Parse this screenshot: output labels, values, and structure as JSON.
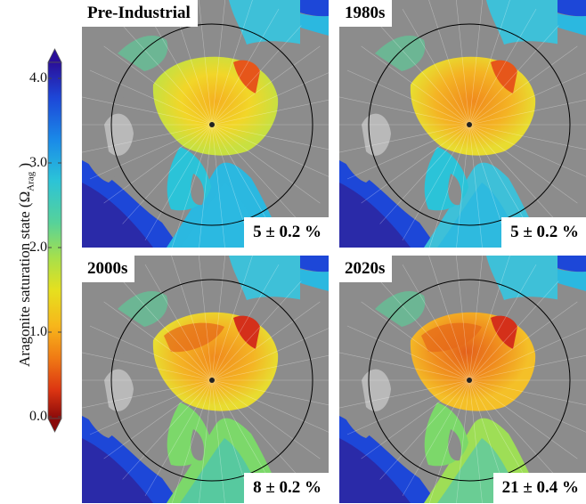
{
  "colorbar": {
    "title_main": "Aragonite saturation state (Ω",
    "title_sub": "Arag",
    "title_end": " )",
    "ticks": [
      "4.0",
      "3.0",
      "2.0",
      "1.0",
      "0.0"
    ],
    "colors": [
      "#2a0f99",
      "#1d47d8",
      "#1a8be8",
      "#2bc3d8",
      "#56d29a",
      "#a8e04a",
      "#e6e01e",
      "#f7b61b",
      "#f07a14",
      "#dc3512",
      "#8a0a0a"
    ],
    "range": [
      0,
      4
    ]
  },
  "panels": [
    {
      "title": "Pre-Industrial",
      "stat": "5 ± 0.2 %"
    },
    {
      "title": "1980s",
      "stat": "5 ± 0.2 %"
    },
    {
      "title": "2000s",
      "stat": "8 ± 0.2 %"
    },
    {
      "title": "2020s",
      "stat": "21 ± 0.4 %"
    }
  ],
  "map_colors": {
    "land": "#8c8c8c",
    "ocean_high": "#2fb7e6",
    "ocean_mid": "#7ad87a",
    "arctic_yellow": "#f2d628",
    "arctic_orange": "#f19a22",
    "arctic_red": "#e04a16"
  }
}
